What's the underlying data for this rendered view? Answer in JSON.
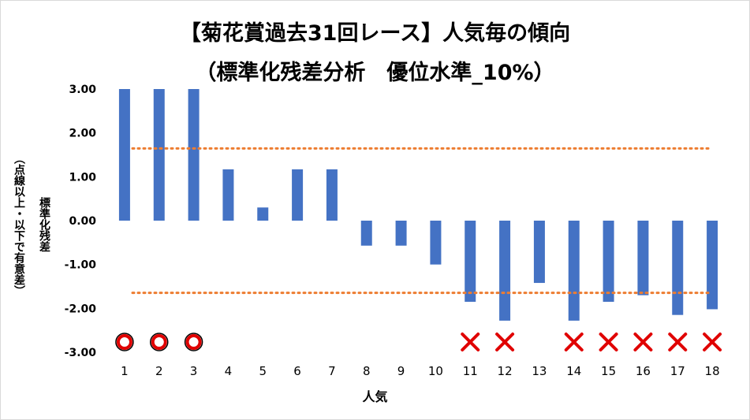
{
  "colors": {
    "bar": "#4472C4",
    "threshold_line": "#ED7D31",
    "mark_circle": "#E00000",
    "mark_cross": "#E00000"
  },
  "chart_data": {
    "type": "bar",
    "title": "【菊花賞過去31回レース】人気毎の傾向",
    "subtitle": "（標準化残差分析　優位水準_10%）",
    "xlabel": "人気",
    "ylabel": "標準化残差",
    "ylabel_note": "（点線以上・以下で有意差）",
    "categories": [
      "1",
      "2",
      "3",
      "4",
      "5",
      "6",
      "7",
      "8",
      "9",
      "10",
      "11",
      "12",
      "13",
      "14",
      "15",
      "16",
      "17",
      "18"
    ],
    "values": [
      3.0,
      3.0,
      3.0,
      1.17,
      0.3,
      1.17,
      1.17,
      -0.57,
      -0.57,
      -1.0,
      -1.85,
      -2.28,
      -1.42,
      -2.28,
      -1.85,
      -1.7,
      -2.15,
      -2.02
    ],
    "ylim": [
      -3.0,
      3.0
    ],
    "yticks": [
      "3.00",
      "2.00",
      "1.00",
      "0.00",
      "-1.00",
      "-2.00",
      "-3.00"
    ],
    "ytick_values": [
      3,
      2,
      1,
      0,
      -1,
      -2,
      -3
    ],
    "threshold_lines": [
      1.645,
      -1.645
    ],
    "markers": [
      "○",
      "○",
      "○",
      "",
      "",
      "",
      "",
      "",
      "",
      "",
      "×",
      "×",
      "",
      "×",
      "×",
      "×",
      "×",
      "×"
    ],
    "grid": false,
    "legend": "none"
  }
}
